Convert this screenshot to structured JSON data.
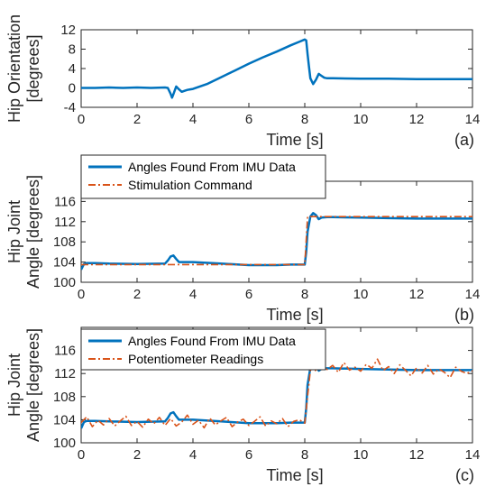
{
  "chart_data": [
    {
      "type": "line",
      "panel_label": "(a)",
      "xlabel": "Time [s]",
      "ylabel": "Hip Orientation [degrees]",
      "ylabel_lines": [
        "Hip Orientation",
        "[degrees]"
      ],
      "xlim": [
        0,
        14
      ],
      "ylim": [
        -4,
        12
      ],
      "xticks": [
        0,
        2,
        4,
        6,
        8,
        10,
        12,
        14
      ],
      "yticks": [
        -4,
        0,
        4,
        8,
        12
      ],
      "grid": false,
      "series": [
        {
          "color": "#0072BD",
          "style": "solid",
          "x": [
            0,
            0.5,
            1,
            1.5,
            2,
            2.5,
            3,
            3.1,
            3.2,
            3.25,
            3.3,
            3.4,
            3.5,
            3.6,
            3.7,
            3.8,
            3.9,
            4,
            4.5,
            5,
            5.5,
            6,
            6.5,
            7,
            7.5,
            7.8,
            8,
            8.05,
            8.1,
            8.15,
            8.2,
            8.3,
            8.4,
            8.5,
            8.6,
            8.7,
            8.8,
            9,
            10,
            11,
            12,
            13,
            14
          ],
          "y": [
            0,
            0,
            0.1,
            0,
            0.1,
            0,
            0.1,
            0,
            -1.2,
            -2,
            -1.3,
            0.3,
            -0.3,
            -0.8,
            -0.6,
            -0.4,
            -0.3,
            -0.2,
            0.8,
            2.2,
            3.6,
            5,
            6.3,
            7.5,
            8.8,
            9.5,
            10,
            9.8,
            7,
            4.5,
            2,
            0.8,
            1.7,
            2.9,
            2.5,
            2.1,
            2,
            2,
            1.9,
            1.9,
            1.8,
            1.8,
            1.8
          ]
        }
      ]
    },
    {
      "type": "line",
      "panel_label": "(b)",
      "xlabel": "Time [s]",
      "ylabel": "Hip Joint Angle [degrees]",
      "ylabel_lines": [
        "Hip Joint",
        "Angle [degrees]"
      ],
      "xlim": [
        0,
        14
      ],
      "ylim": [
        100,
        120
      ],
      "xticks": [
        0,
        2,
        4,
        6,
        8,
        10,
        12,
        14
      ],
      "yticks": [
        100,
        104,
        108,
        112,
        116
      ],
      "grid": false,
      "legend": "top-left",
      "series": [
        {
          "name": "Angles Found From IMU Data",
          "color": "#0072BD",
          "style": "solid",
          "x": [
            0,
            0.1,
            0.2,
            0.5,
            1,
            2,
            3,
            3.1,
            3.2,
            3.3,
            3.4,
            3.5,
            3.7,
            4,
            5,
            6,
            7,
            7.5,
            7.9,
            8,
            8.05,
            8.1,
            8.2,
            8.3,
            8.4,
            8.5,
            8.6,
            8.8,
            9,
            10,
            11,
            12,
            13,
            14
          ],
          "y": [
            102.5,
            103.6,
            103.8,
            103.8,
            103.7,
            103.6,
            103.7,
            104.3,
            105.1,
            105.3,
            104.6,
            104,
            104,
            104,
            103.7,
            103.4,
            103.4,
            103.5,
            103.5,
            103.5,
            106,
            110,
            113,
            113.7,
            113.3,
            112.5,
            112.8,
            112.9,
            112.9,
            112.8,
            112.7,
            112.6,
            112.6,
            112.6
          ]
        },
        {
          "name": "Stimulation Command",
          "color": "#D95319",
          "style": "dash-dot",
          "x": [
            0,
            8,
            8.1,
            14
          ],
          "y": [
            103.5,
            103.5,
            113,
            113
          ]
        }
      ]
    },
    {
      "type": "line",
      "panel_label": "(c)",
      "xlabel": "Time [s]",
      "ylabel": "Hip Joint Angle [degrees]",
      "ylabel_lines": [
        "Hip Joint",
        "Angle [degrees]"
      ],
      "xlim": [
        0,
        14
      ],
      "ylim": [
        100,
        120
      ],
      "xticks": [
        0,
        2,
        4,
        6,
        8,
        10,
        12,
        14
      ],
      "yticks": [
        100,
        104,
        108,
        112,
        116
      ],
      "grid": false,
      "legend": "top-left",
      "series": [
        {
          "name": "Angles Found From IMU Data",
          "color": "#0072BD",
          "style": "solid",
          "x": [
            0,
            0.1,
            0.2,
            0.5,
            1,
            2,
            3,
            3.1,
            3.2,
            3.3,
            3.4,
            3.5,
            3.7,
            4,
            5,
            6,
            7,
            7.5,
            7.9,
            8,
            8.05,
            8.1,
            8.2,
            8.3,
            8.4,
            8.5,
            8.6,
            8.8,
            9,
            10,
            11,
            12,
            13,
            14
          ],
          "y": [
            102.5,
            103.6,
            103.8,
            103.8,
            103.7,
            103.6,
            103.7,
            104.3,
            105.1,
            105.3,
            104.6,
            104,
            104,
            104,
            103.7,
            103.4,
            103.4,
            103.5,
            103.5,
            103.5,
            106,
            110,
            113,
            113.7,
            113.3,
            112.5,
            112.8,
            112.9,
            112.9,
            112.8,
            112.7,
            112.6,
            112.6,
            112.6
          ]
        },
        {
          "name": "Potentiometer Readings",
          "color": "#D95319",
          "style": "dash-dot",
          "x": [
            0,
            0.2,
            0.4,
            0.6,
            0.8,
            1,
            1.2,
            1.4,
            1.6,
            1.8,
            2,
            2.2,
            2.4,
            2.6,
            2.8,
            3,
            3.2,
            3.4,
            3.6,
            3.8,
            4,
            4.2,
            4.4,
            4.6,
            4.8,
            5,
            5.2,
            5.4,
            5.6,
            5.8,
            6,
            6.2,
            6.4,
            6.6,
            6.8,
            7,
            7.2,
            7.4,
            7.6,
            7.8,
            8,
            8.1,
            8.2,
            8.3,
            8.4,
            8.6,
            8.8,
            9,
            9.2,
            9.4,
            9.6,
            9.8,
            10,
            10.2,
            10.4,
            10.6,
            10.8,
            11,
            11.2,
            11.4,
            11.6,
            11.8,
            12,
            12.2,
            12.4,
            12.6,
            12.8,
            13,
            13.2,
            13.4,
            13.6,
            13.8,
            14
          ],
          "y": [
            103.5,
            104.5,
            102.8,
            103.9,
            103.1,
            104.2,
            102.9,
            103.8,
            104.6,
            103,
            103.7,
            102.7,
            104.1,
            103.3,
            104.4,
            103,
            104.2,
            102.9,
            103.6,
            104.8,
            103.2,
            103.9,
            102.6,
            104.3,
            103.1,
            103.8,
            104.4,
            102.8,
            103.6,
            104.1,
            103,
            103.7,
            104.5,
            102.9,
            103.8,
            103.3,
            104.2,
            102.8,
            103.7,
            104,
            103.4,
            108,
            112.5,
            113.3,
            112.4,
            113.8,
            112.7,
            113.4,
            112.2,
            113.9,
            112.6,
            113.1,
            112.4,
            113.6,
            112.9,
            114.5,
            112.5,
            113.2,
            112,
            113.5,
            112.6,
            111.6,
            113,
            112.1,
            113.4,
            111.9,
            112.8,
            112.2,
            111.3,
            113.1,
            112.4,
            112,
            112.5
          ]
        }
      ]
    }
  ]
}
